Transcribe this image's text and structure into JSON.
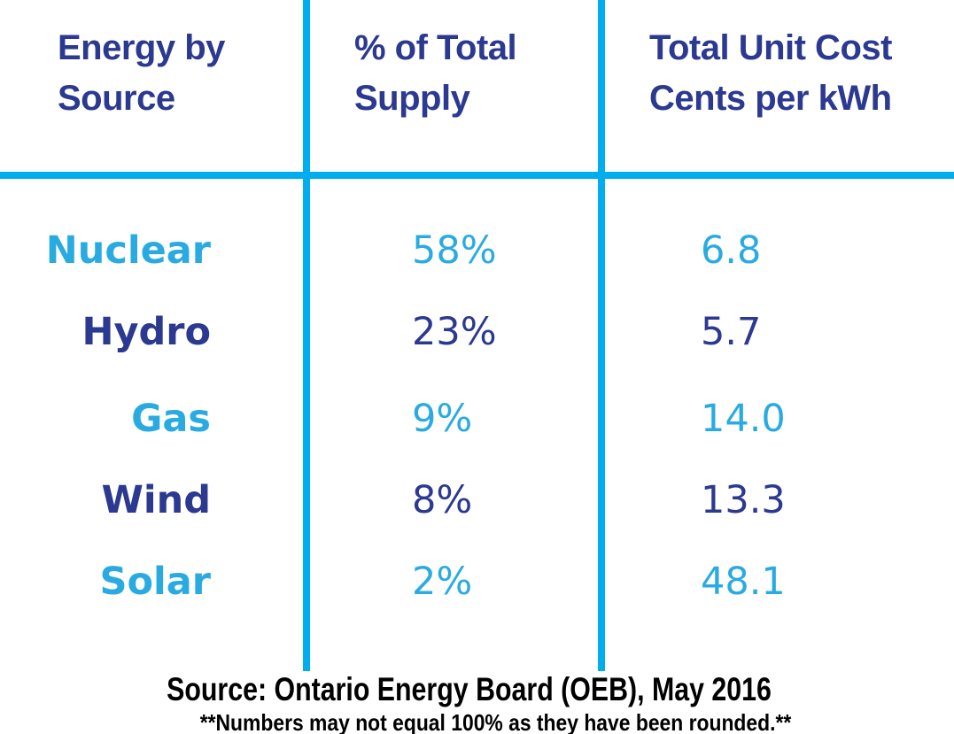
{
  "colors": {
    "navy": "#2b3990",
    "cyan": "#29abe2",
    "line": "#00aeef",
    "ink": "#000000",
    "background": "#ffffff"
  },
  "table": {
    "columns": [
      {
        "title": "Energy by\nSource"
      },
      {
        "title": "% of Total\nSupply"
      },
      {
        "title": "Total Unit Cost\nCents per kWh"
      }
    ],
    "rows": [
      {
        "source": "Nuclear",
        "supply": "58%",
        "cost": "6.8",
        "tone": "cyan"
      },
      {
        "source": "Hydro",
        "supply": "23%",
        "cost": "5.7",
        "tone": "navy"
      },
      {
        "source": "Gas",
        "supply": "9%",
        "cost": "14.0",
        "tone": "cyan"
      },
      {
        "source": "Wind",
        "supply": "8%",
        "cost": "13.3",
        "tone": "navy"
      },
      {
        "source": "Solar",
        "supply": "2%",
        "cost": "48.1",
        "tone": "cyan"
      }
    ]
  },
  "footer": {
    "source": "Source: Ontario Energy Board (OEB), May 2016",
    "note": "**Numbers may not equal 100% as they have been rounded.**"
  },
  "chart_data": {
    "type": "table",
    "title": "",
    "columns": [
      "Energy by Source",
      "% of Total Supply",
      "Total Unit Cost Cents per kWh"
    ],
    "rows": [
      [
        "Nuclear",
        "58%",
        6.8
      ],
      [
        "Hydro",
        "23%",
        5.7
      ],
      [
        "Gas",
        "9%",
        14.0
      ],
      [
        "Wind",
        "8%",
        13.3
      ],
      [
        "Solar",
        "2%",
        48.1
      ]
    ],
    "percent_of_total_supply": {
      "Nuclear": 58,
      "Hydro": 23,
      "Gas": 9,
      "Wind": 8,
      "Solar": 2
    },
    "unit_cost_cents_per_kwh": {
      "Nuclear": 6.8,
      "Hydro": 5.7,
      "Gas": 14.0,
      "Wind": 13.3,
      "Solar": 48.1
    },
    "source": "Source: Ontario Energy Board (OEB), May 2016",
    "note": "**Numbers may not equal 100% as they have been rounded.**"
  }
}
